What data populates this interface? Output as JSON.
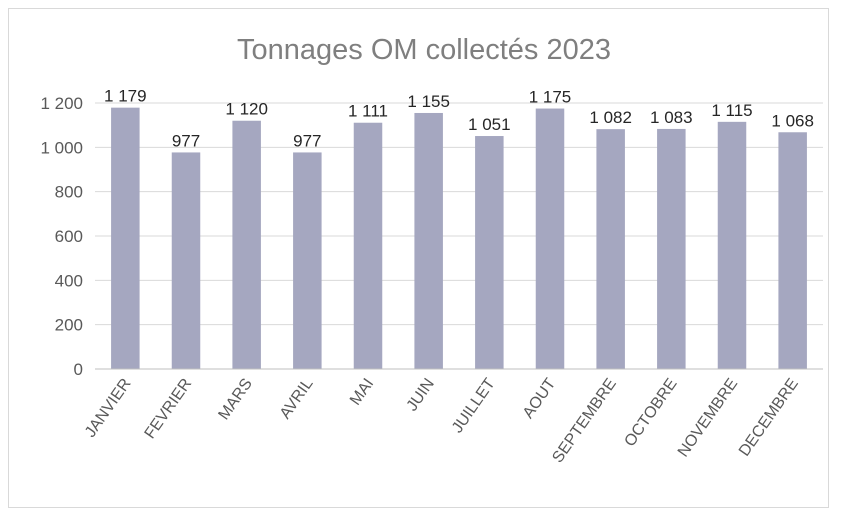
{
  "chart_data": {
    "type": "bar",
    "title": "Tonnages OM collectés 2023",
    "categories": [
      "JANVIER",
      "FEVRIER",
      "MARS",
      "AVRIL",
      "MAI",
      "JUIN",
      "JUILLET",
      "AOUT",
      "SEPTEMBRE",
      "OCTOBRE",
      "NOVEMBRE",
      "DECEMBRE"
    ],
    "values": [
      1179,
      977,
      1120,
      977,
      1111,
      1155,
      1051,
      1175,
      1082,
      1083,
      1115,
      1068
    ],
    "data_labels": [
      "1 179",
      "977",
      "1 120",
      "977",
      "1 111",
      "1 155",
      "1 051",
      "1 175",
      "1 082",
      "1 083",
      "1 115",
      "1 068"
    ],
    "yticks": [
      0,
      200,
      400,
      600,
      800,
      1000,
      1200
    ],
    "ytick_labels": [
      "0",
      "200",
      "400",
      "600",
      "800",
      "1 000",
      "1 200"
    ],
    "ylim": [
      0,
      1200
    ],
    "xlabel": "",
    "ylabel": "",
    "grid": true,
    "legend": "none",
    "colors": {
      "bar": "#a5a7c0",
      "grid": "#d9d9d9",
      "axis": "#bfbfbf",
      "title": "#7f7f7f",
      "tick": "#595959",
      "label": "#262626"
    }
  }
}
